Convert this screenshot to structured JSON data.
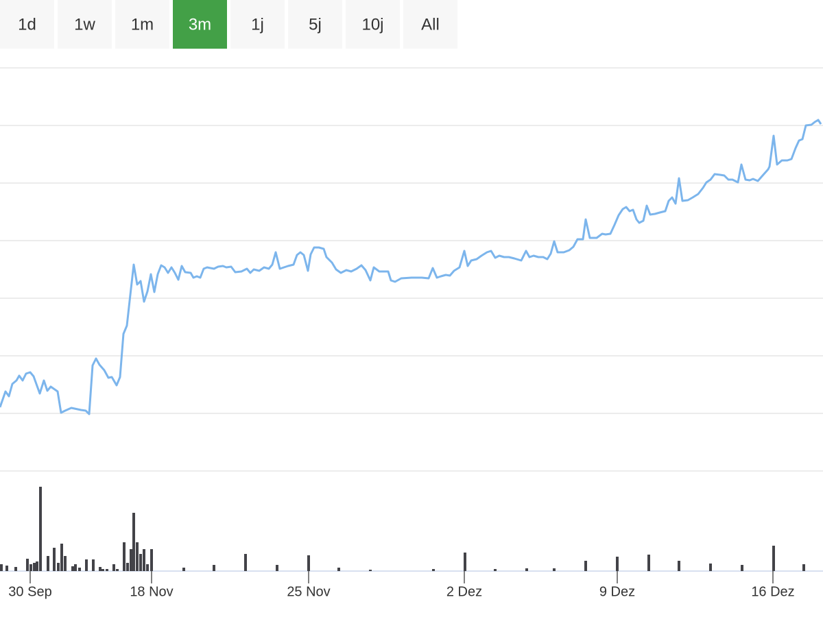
{
  "buttons": [
    {
      "label": "1d",
      "active": false
    },
    {
      "label": "1w",
      "active": false
    },
    {
      "label": "1m",
      "active": false
    },
    {
      "label": "3m",
      "active": true
    },
    {
      "label": "1j",
      "active": false
    },
    {
      "label": "5j",
      "active": false
    },
    {
      "label": "10j",
      "active": false
    },
    {
      "label": "All",
      "active": false
    }
  ],
  "chart_data": {
    "type": "line",
    "xlim": [
      0,
      1200
    ],
    "xticks": [
      {
        "value": 44,
        "label": "30 Sep"
      },
      {
        "value": 221,
        "label": "18 Nov"
      },
      {
        "value": 450,
        "label": "25 Nov"
      },
      {
        "value": 677,
        "label": "2 Dez"
      },
      {
        "value": 900,
        "label": "9 Dez"
      },
      {
        "value": 1127,
        "label": "16 Dez"
      }
    ],
    "ylim": [
      0,
      588
    ],
    "yticks": [
      0,
      84,
      168,
      252,
      336,
      420,
      504,
      588
    ],
    "grid": true,
    "y2lim": [
      0,
      146
    ],
    "series": [
      {
        "color": "#7cb5ec",
        "x": [
          0,
          8,
          13,
          18,
          24,
          28,
          33,
          38,
          44,
          49,
          58,
          64,
          69,
          74,
          84,
          89,
          95,
          104,
          118,
          125,
          130,
          135,
          140,
          145,
          152,
          158,
          163,
          170,
          175,
          180,
          185,
          190,
          195,
          200,
          205,
          210,
          215,
          220,
          225,
          230,
          235,
          240,
          245,
          250,
          255,
          260,
          265,
          270,
          278,
          282,
          287,
          292,
          297,
          302,
          312,
          318,
          325,
          330,
          337,
          343,
          352,
          360,
          365,
          370,
          378,
          385,
          392,
          397,
          402,
          408,
          420,
          428,
          433,
          438,
          443,
          449,
          453,
          458,
          465,
          472,
          476,
          484,
          490,
          497,
          505,
          512,
          520,
          527,
          533,
          540,
          545,
          553,
          566,
          570,
          576,
          585,
          600,
          615,
          625,
          631,
          637,
          643,
          650,
          656,
          662,
          670,
          677,
          682,
          687,
          695,
          702,
          710,
          716,
          722,
          728,
          735,
          742,
          750,
          760,
          767,
          772,
          778,
          785,
          792,
          798,
          803,
          808,
          813,
          822,
          830,
          836,
          842,
          850,
          854,
          860,
          870,
          878,
          883,
          890,
          896,
          902,
          908,
          913,
          918,
          923,
          928,
          932,
          938,
          943,
          948,
          955,
          962,
          970,
          975,
          980,
          985,
          990,
          995,
          1003,
          1010,
          1018,
          1025,
          1030,
          1036,
          1042,
          1050,
          1056,
          1062,
          1068,
          1076,
          1081,
          1087,
          1093,
          1098,
          1105,
          1112,
          1120,
          1122,
          1128,
          1133,
          1140,
          1148,
          1154,
          1160,
          1165,
          1170,
          1175,
          1183,
          1188,
          1193,
          1197
        ],
        "values": [
          93,
          116,
          109,
          127,
          132,
          139,
          132,
          142,
          144,
          138,
          113,
          132,
          117,
          123,
          116,
          85,
          88,
          92,
          89,
          88,
          83,
          154,
          164,
          155,
          147,
          136,
          137,
          125,
          137,
          200,
          212,
          257,
          301,
          272,
          277,
          247,
          262,
          287,
          261,
          287,
          300,
          297,
          289,
          297,
          289,
          279,
          299,
          290,
          289,
          282,
          284,
          282,
          295,
          297,
          295,
          298,
          299,
          297,
          298,
          290,
          291,
          295,
          289,
          294,
          292,
          297,
          295,
          301,
          319,
          295,
          299,
          301,
          315,
          319,
          315,
          292,
          316,
          326,
          326,
          324,
          312,
          304,
          294,
          289,
          293,
          291,
          295,
          300,
          293,
          278,
          297,
          291,
          291,
          278,
          276,
          281,
          282,
          282,
          281,
          296,
          282,
          284,
          286,
          285,
          292,
          297,
          321,
          299,
          307,
          309,
          314,
          319,
          321,
          311,
          314,
          312,
          312,
          310,
          307,
          321,
          312,
          314,
          312,
          312,
          309,
          317,
          335,
          319,
          319,
          322,
          327,
          338,
          338,
          367,
          340,
          340,
          346,
          345,
          346,
          359,
          373,
          382,
          385,
          379,
          381,
          367,
          362,
          365,
          387,
          374,
          375,
          377,
          379,
          394,
          399,
          390,
          427,
          394,
          395,
          399,
          404,
          413,
          421,
          425,
          433,
          432,
          431,
          425,
          425,
          421,
          447,
          425,
          424,
          426,
          423,
          431,
          440,
          444,
          489,
          447,
          453,
          453,
          455,
          471,
          482,
          484,
          504,
          505,
          509,
          512,
          506
        ]
      },
      {
        "color": "#434348",
        "axis": "y2",
        "x": [
          2,
          10,
          23,
          40,
          45,
          50,
          54,
          59,
          70,
          79,
          85,
          90,
          95,
          106,
          110,
          116,
          126,
          136,
          146,
          150,
          156,
          166,
          171,
          181,
          186,
          191,
          195,
          200,
          205,
          210,
          215,
          221,
          268,
          312,
          358,
          404,
          450,
          494,
          540,
          632,
          678,
          722,
          768,
          808,
          854,
          900,
          946,
          990,
          1036,
          1082,
          1128,
          1172
        ],
        "values": [
          10,
          8,
          6,
          18,
          10,
          12,
          14,
          123,
          22,
          34,
          12,
          40,
          22,
          7,
          10,
          5,
          17,
          17,
          6,
          3,
          3,
          10,
          3,
          42,
          12,
          32,
          85,
          42,
          25,
          32,
          10,
          32,
          5,
          9,
          25,
          9,
          23,
          5,
          2,
          3,
          27,
          3,
          4,
          4,
          15,
          21,
          24,
          15,
          11,
          9,
          37,
          10
        ]
      }
    ]
  }
}
